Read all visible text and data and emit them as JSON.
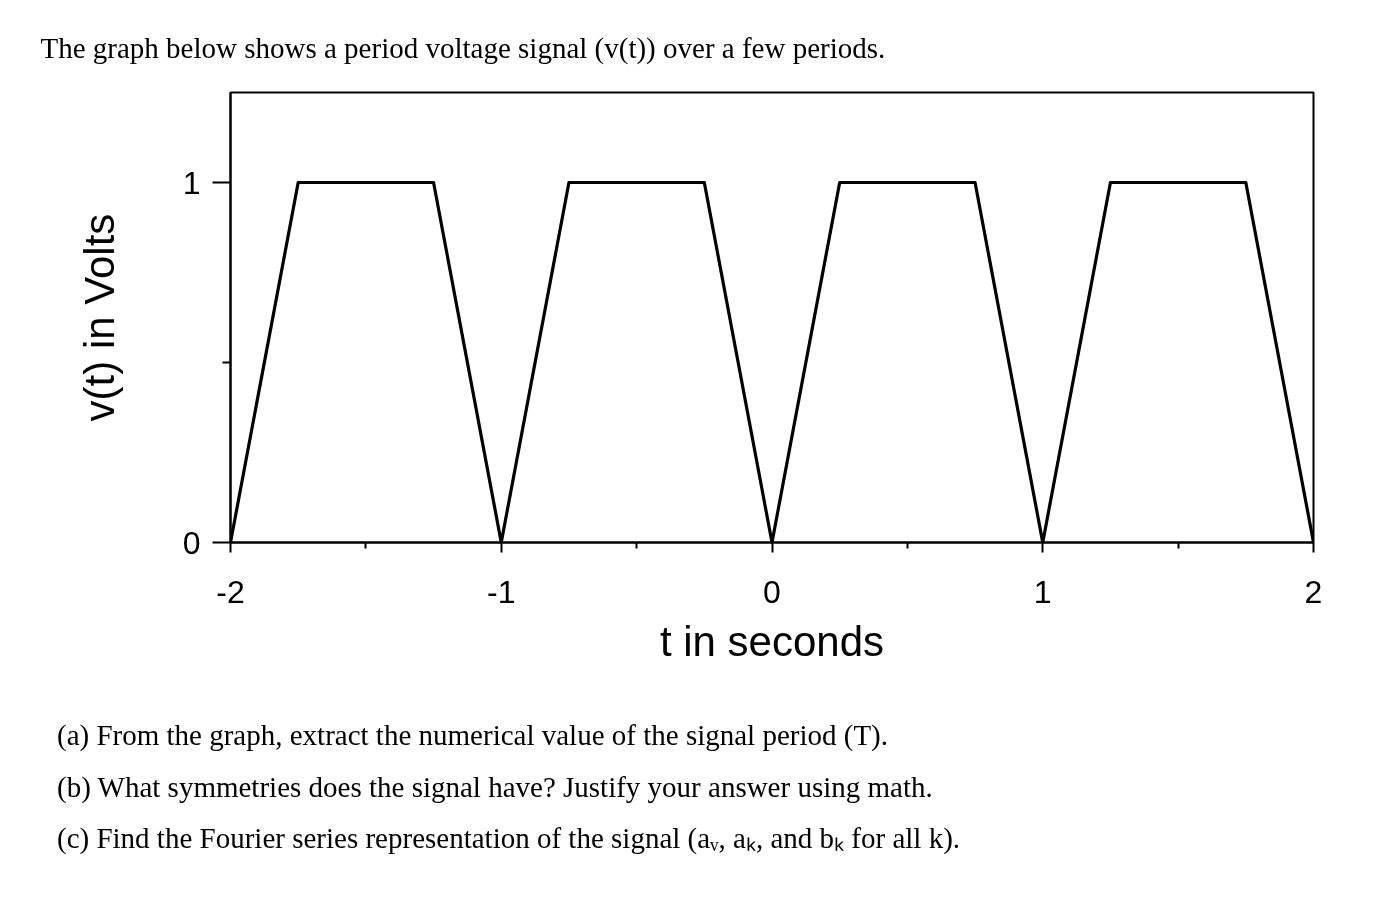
{
  "chart_data": {
    "type": "line",
    "title": "The graph below shows a period voltage signal (v(t)) over a few periods.",
    "xlabel": "t in seconds",
    "ylabel": "v(t) in Volts",
    "x": [
      -2,
      -1.75,
      -1.25,
      -1,
      -0.75,
      -0.25,
      0,
      0.25,
      0.75,
      1,
      1.25,
      1.75,
      2
    ],
    "series": [
      {
        "color": "#000000",
        "values": [
          0,
          1,
          1,
          0,
          1,
          1,
          0,
          1,
          1,
          0,
          1,
          1,
          0
        ]
      }
    ],
    "xlim": [
      -2,
      2
    ],
    "ylim": [
      0,
      1.25
    ],
    "xticks": [
      -2,
      {
        "value": -1.5,
        "label": null
      },
      -1,
      {
        "value": -0.5,
        "label": null
      },
      0,
      {
        "value": 0.5,
        "label": null
      },
      1,
      {
        "value": 1.5,
        "label": null
      },
      2
    ],
    "yticks": [
      0,
      {
        "value": 0.5,
        "label": null
      },
      1
    ],
    "grid": false,
    "line_style": "solid",
    "annotations": [
      "(a) From the graph, extract the numerical value of the signal period (T).",
      "(b) What symmetries does the signal have? Justify your answer using math.",
      "(c) Find the Fourier series representation of the signal (aᵥ, aₖ, and bₖ for all k)."
    ]
  }
}
